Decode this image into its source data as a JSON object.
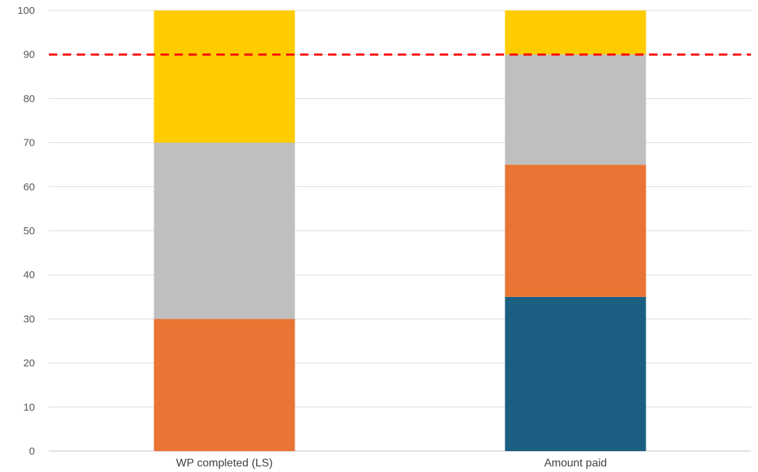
{
  "chart_data": {
    "type": "bar",
    "stacked": true,
    "categories": [
      "WP completed (LS)",
      "Amount paid"
    ],
    "series": [
      {
        "color": "#1a5f82",
        "values": [
          0,
          35
        ]
      },
      {
        "color": "#e97434",
        "values": [
          30,
          30
        ]
      },
      {
        "color": "#bfbfbf",
        "values": [
          40,
          25
        ]
      },
      {
        "color": "#ffcc00",
        "values": [
          30,
          10
        ]
      }
    ],
    "ylim": [
      0,
      100
    ],
    "yticks": [
      "0",
      "10",
      "20",
      "30",
      "40",
      "50",
      "60",
      "70",
      "80",
      "90",
      "100"
    ],
    "reference_line": {
      "value": 90,
      "color": "#ff0000",
      "style": "dashed"
    },
    "grid": true,
    "legend": "none"
  }
}
